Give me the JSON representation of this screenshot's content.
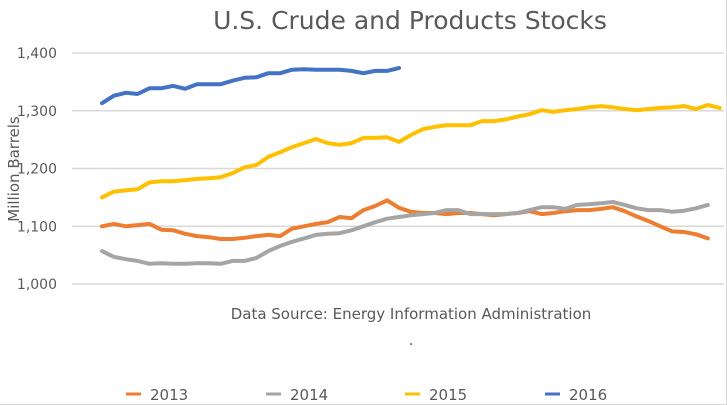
{
  "chart_data": {
    "type": "line",
    "title": "U.S. Crude and Products Stocks",
    "xlabel": "",
    "ylabel": "Million Barrels",
    "ylim": [
      1000,
      1400
    ],
    "yticks": [
      1000,
      1100,
      1200,
      1300,
      1400
    ],
    "ytick_labels": [
      "1,000",
      "1,100",
      "1,200",
      "1,300",
      "1,400"
    ],
    "grid": true,
    "legend_position": "bottom",
    "annotations": [
      "Data Source: Energy Information Administration",
      "."
    ],
    "x_unit": "week of year",
    "series": [
      {
        "name": "2013",
        "color": "#ED7D31",
        "values": [
          1100,
          1104,
          1100,
          1102,
          1104,
          1094,
          1093,
          1087,
          1083,
          1081,
          1078,
          1078,
          1080,
          1083,
          1085,
          1083,
          1096,
          1100,
          1104,
          1107,
          1116,
          1114,
          1128,
          1135,
          1145,
          1132,
          1125,
          1123,
          1123,
          1121,
          1123,
          1123,
          1121,
          1119,
          1121,
          1123,
          1126,
          1121,
          1123,
          1126,
          1128,
          1128,
          1130,
          1133,
          1126,
          1117,
          1109,
          1100,
          1091,
          1090,
          1086,
          1079
        ]
      },
      {
        "name": "2014",
        "color": "#A5A5A5",
        "values": [
          1057,
          1047,
          1043,
          1040,
          1035,
          1036,
          1035,
          1035,
          1036,
          1036,
          1035,
          1040,
          1040,
          1045,
          1057,
          1066,
          1073,
          1079,
          1085,
          1087,
          1088,
          1093,
          1100,
          1107,
          1113,
          1116,
          1119,
          1121,
          1123,
          1128,
          1128,
          1121,
          1121,
          1121,
          1121,
          1123,
          1128,
          1133,
          1133,
          1130,
          1137,
          1138,
          1140,
          1142,
          1137,
          1131,
          1128,
          1128,
          1125,
          1127,
          1131,
          1137
        ]
      },
      {
        "name": "2015",
        "color": "#FFC000",
        "values": [
          1150,
          1160,
          1162,
          1164,
          1176,
          1178,
          1178,
          1180,
          1182,
          1183,
          1185,
          1192,
          1202,
          1206,
          1220,
          1228,
          1237,
          1244,
          1251,
          1244,
          1241,
          1244,
          1253,
          1253,
          1254,
          1246,
          1258,
          1268,
          1272,
          1275,
          1275,
          1275,
          1282,
          1282,
          1285,
          1290,
          1294,
          1301,
          1298,
          1301,
          1303,
          1306,
          1308,
          1306,
          1303,
          1301,
          1303,
          1305,
          1306,
          1308,
          1303,
          1310,
          1305
        ]
      },
      {
        "name": "2016",
        "color": "#4472C4",
        "values": [
          1313,
          1326,
          1331,
          1329,
          1339,
          1339,
          1343,
          1338,
          1346,
          1346,
          1346,
          1352,
          1357,
          1358,
          1365,
          1365,
          1371,
          1372,
          1371,
          1371,
          1371,
          1369,
          1365,
          1369,
          1369,
          1374
        ]
      }
    ]
  }
}
